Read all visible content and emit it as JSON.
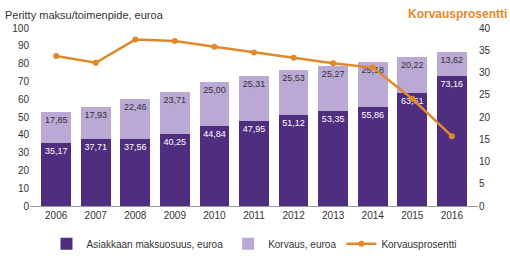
{
  "chart_data": {
    "type": "bar",
    "stacked": true,
    "ylabel": "Peritty maksu/toimenpide, euroa",
    "y2label": "Korvausprosentti",
    "categories": [
      "2006",
      "2007",
      "2008",
      "2009",
      "2010",
      "2011",
      "2012",
      "2013",
      "2014",
      "2015",
      "2016"
    ],
    "series": [
      {
        "name": "Asiakkaan maksuosuus, euroa",
        "type": "bar",
        "color": "#4f2d7f",
        "values": [
          35.17,
          37.71,
          37.56,
          40.25,
          44.84,
          47.95,
          51.12,
          53.35,
          55.86,
          63.61,
          73.16
        ],
        "value_labels": [
          "35,17",
          "37,71",
          "37,56",
          "40,25",
          "44,84",
          "47,95",
          "51,12",
          "53,35",
          "55,86",
          "63,61",
          "73,16"
        ],
        "data_labels": true
      },
      {
        "name": "Korvaus, euroa",
        "type": "bar",
        "color": "#b9a9d4",
        "values": [
          17.85,
          17.93,
          22.46,
          23.71,
          25.0,
          25.31,
          25.53,
          25.27,
          25.18,
          20.22,
          13.62
        ],
        "value_labels": [
          "17,85",
          "17,93",
          "22,46",
          "23,71",
          "25,00",
          "25,31",
          "25,53",
          "25,27",
          "25,18",
          "20,22",
          "13,62"
        ],
        "data_labels": true
      },
      {
        "name": "Korvausprosentti",
        "type": "line",
        "axis": "y2",
        "color": "#e0892b",
        "marker": "circle",
        "values": [
          33.7,
          32.2,
          37.4,
          37.1,
          35.8,
          34.5,
          33.3,
          32.1,
          31.1,
          24.1,
          15.7
        ]
      }
    ],
    "ylim": [
      0,
      100
    ],
    "yticks": [
      0,
      10,
      20,
      30,
      40,
      50,
      60,
      70,
      80,
      90,
      100
    ],
    "y2lim": [
      0,
      40
    ],
    "y2ticks": [
      0,
      5,
      10,
      15,
      20,
      25,
      30,
      35,
      40
    ],
    "grid": false,
    "legend": "bottom"
  }
}
